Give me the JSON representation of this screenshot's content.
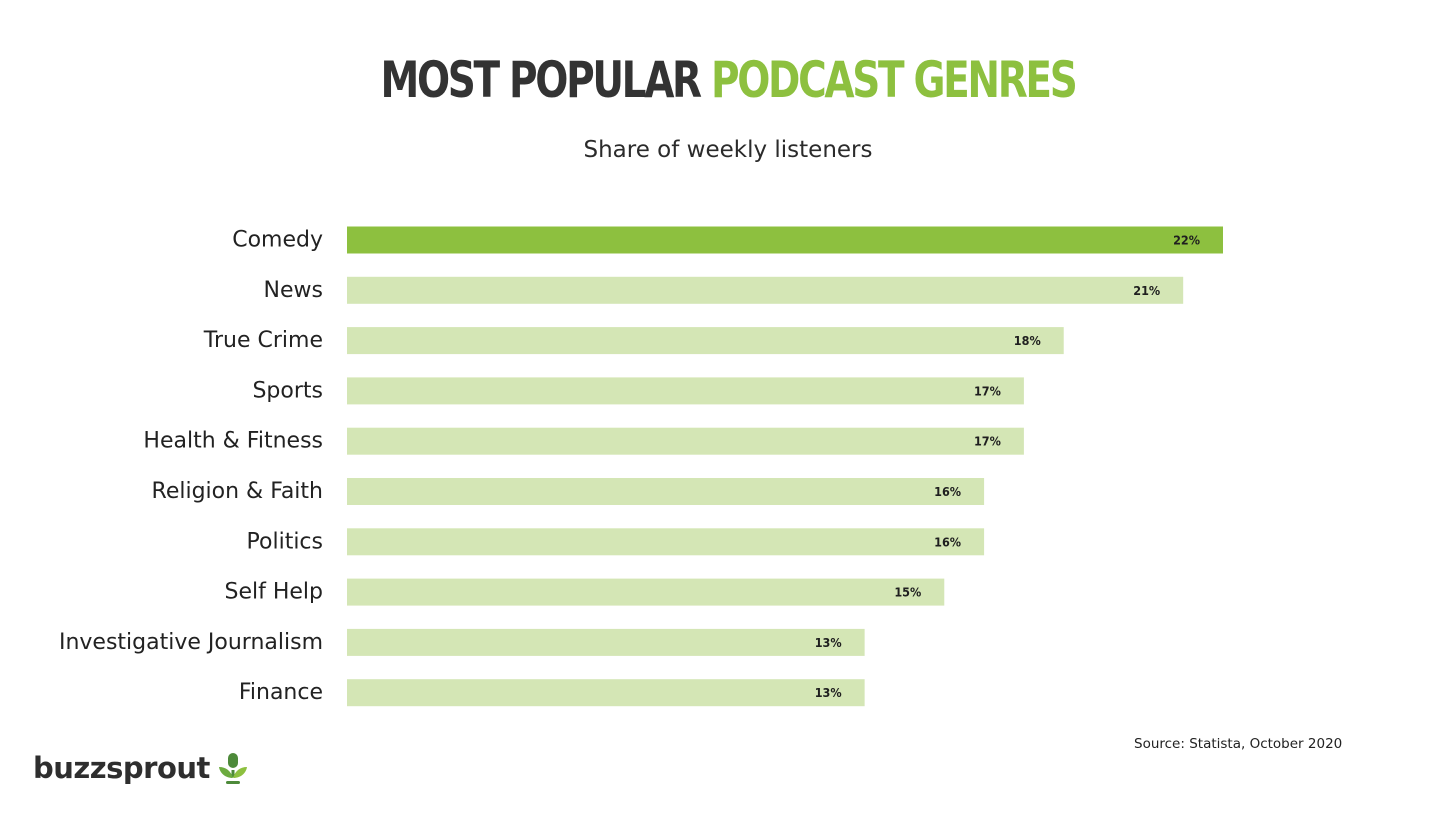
{
  "title": {
    "part1": "MOST POPULAR",
    "part2": "PODCAST GENRES"
  },
  "subtitle": "Share of weekly listeners",
  "source": "Source: Statista, October 2020",
  "logo": {
    "text": "buzzsprout",
    "icon": "sprout-microphone-icon"
  },
  "colors": {
    "title_dark": "#333333",
    "accent": "#8dc03f",
    "highlight_bar": "#8dc03f",
    "bar": "#d4e6b5"
  },
  "chart_data": {
    "type": "bar",
    "orientation": "horizontal",
    "title": "MOST POPULAR PODCAST GENRES",
    "subtitle": "Share of weekly listeners",
    "categories": [
      "Comedy",
      "News",
      "True Crime",
      "Sports",
      "Health & Fitness",
      "Religion & Faith",
      "Politics",
      "Self Help",
      "Investigative Journalism",
      "Finance"
    ],
    "values": [
      22,
      21,
      18,
      17,
      17,
      16,
      16,
      15,
      13,
      13
    ],
    "value_labels": [
      "22%",
      "21%",
      "18%",
      "17%",
      "17%",
      "16%",
      "16%",
      "15%",
      "13%",
      "13%"
    ],
    "highlighted_category": "Comedy",
    "xlim": [
      0,
      22
    ],
    "grid": false,
    "legend": false
  }
}
